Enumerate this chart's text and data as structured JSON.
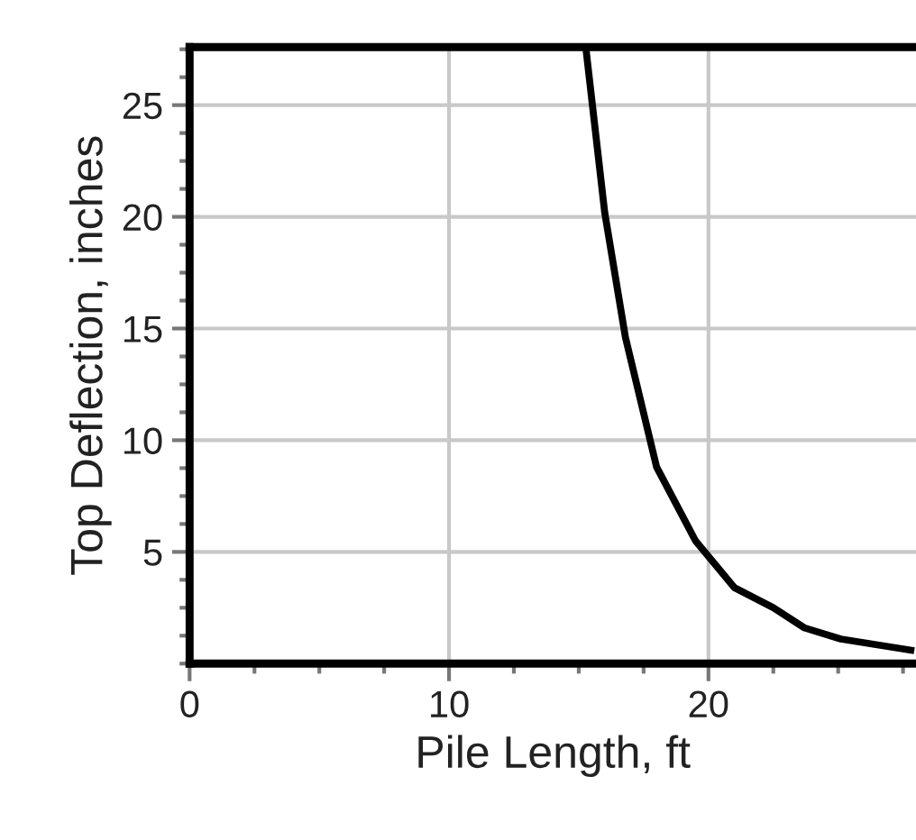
{
  "chart_data": {
    "type": "line",
    "xlabel": "Pile Length, ft",
    "ylabel": "Top Deflection, inches",
    "x": [
      15.3,
      16.0,
      16.8,
      18.0,
      19.5,
      21.0,
      22.5,
      23.7,
      25.1,
      27.8
    ],
    "series": [
      {
        "color": "#000000",
        "values": [
          27.3,
          20.2,
          14.6,
          8.8,
          5.5,
          3.4,
          2.5,
          1.6,
          1.1,
          0.6
        ]
      }
    ],
    "xlim": [
      0,
      28
    ],
    "ylim": [
      0,
      27.6
    ],
    "xticks": [
      0,
      10,
      20
    ],
    "yticks": [
      5,
      10,
      15,
      20,
      25
    ],
    "grid": true,
    "legend": false,
    "marker": "none",
    "line_style": "solid"
  }
}
